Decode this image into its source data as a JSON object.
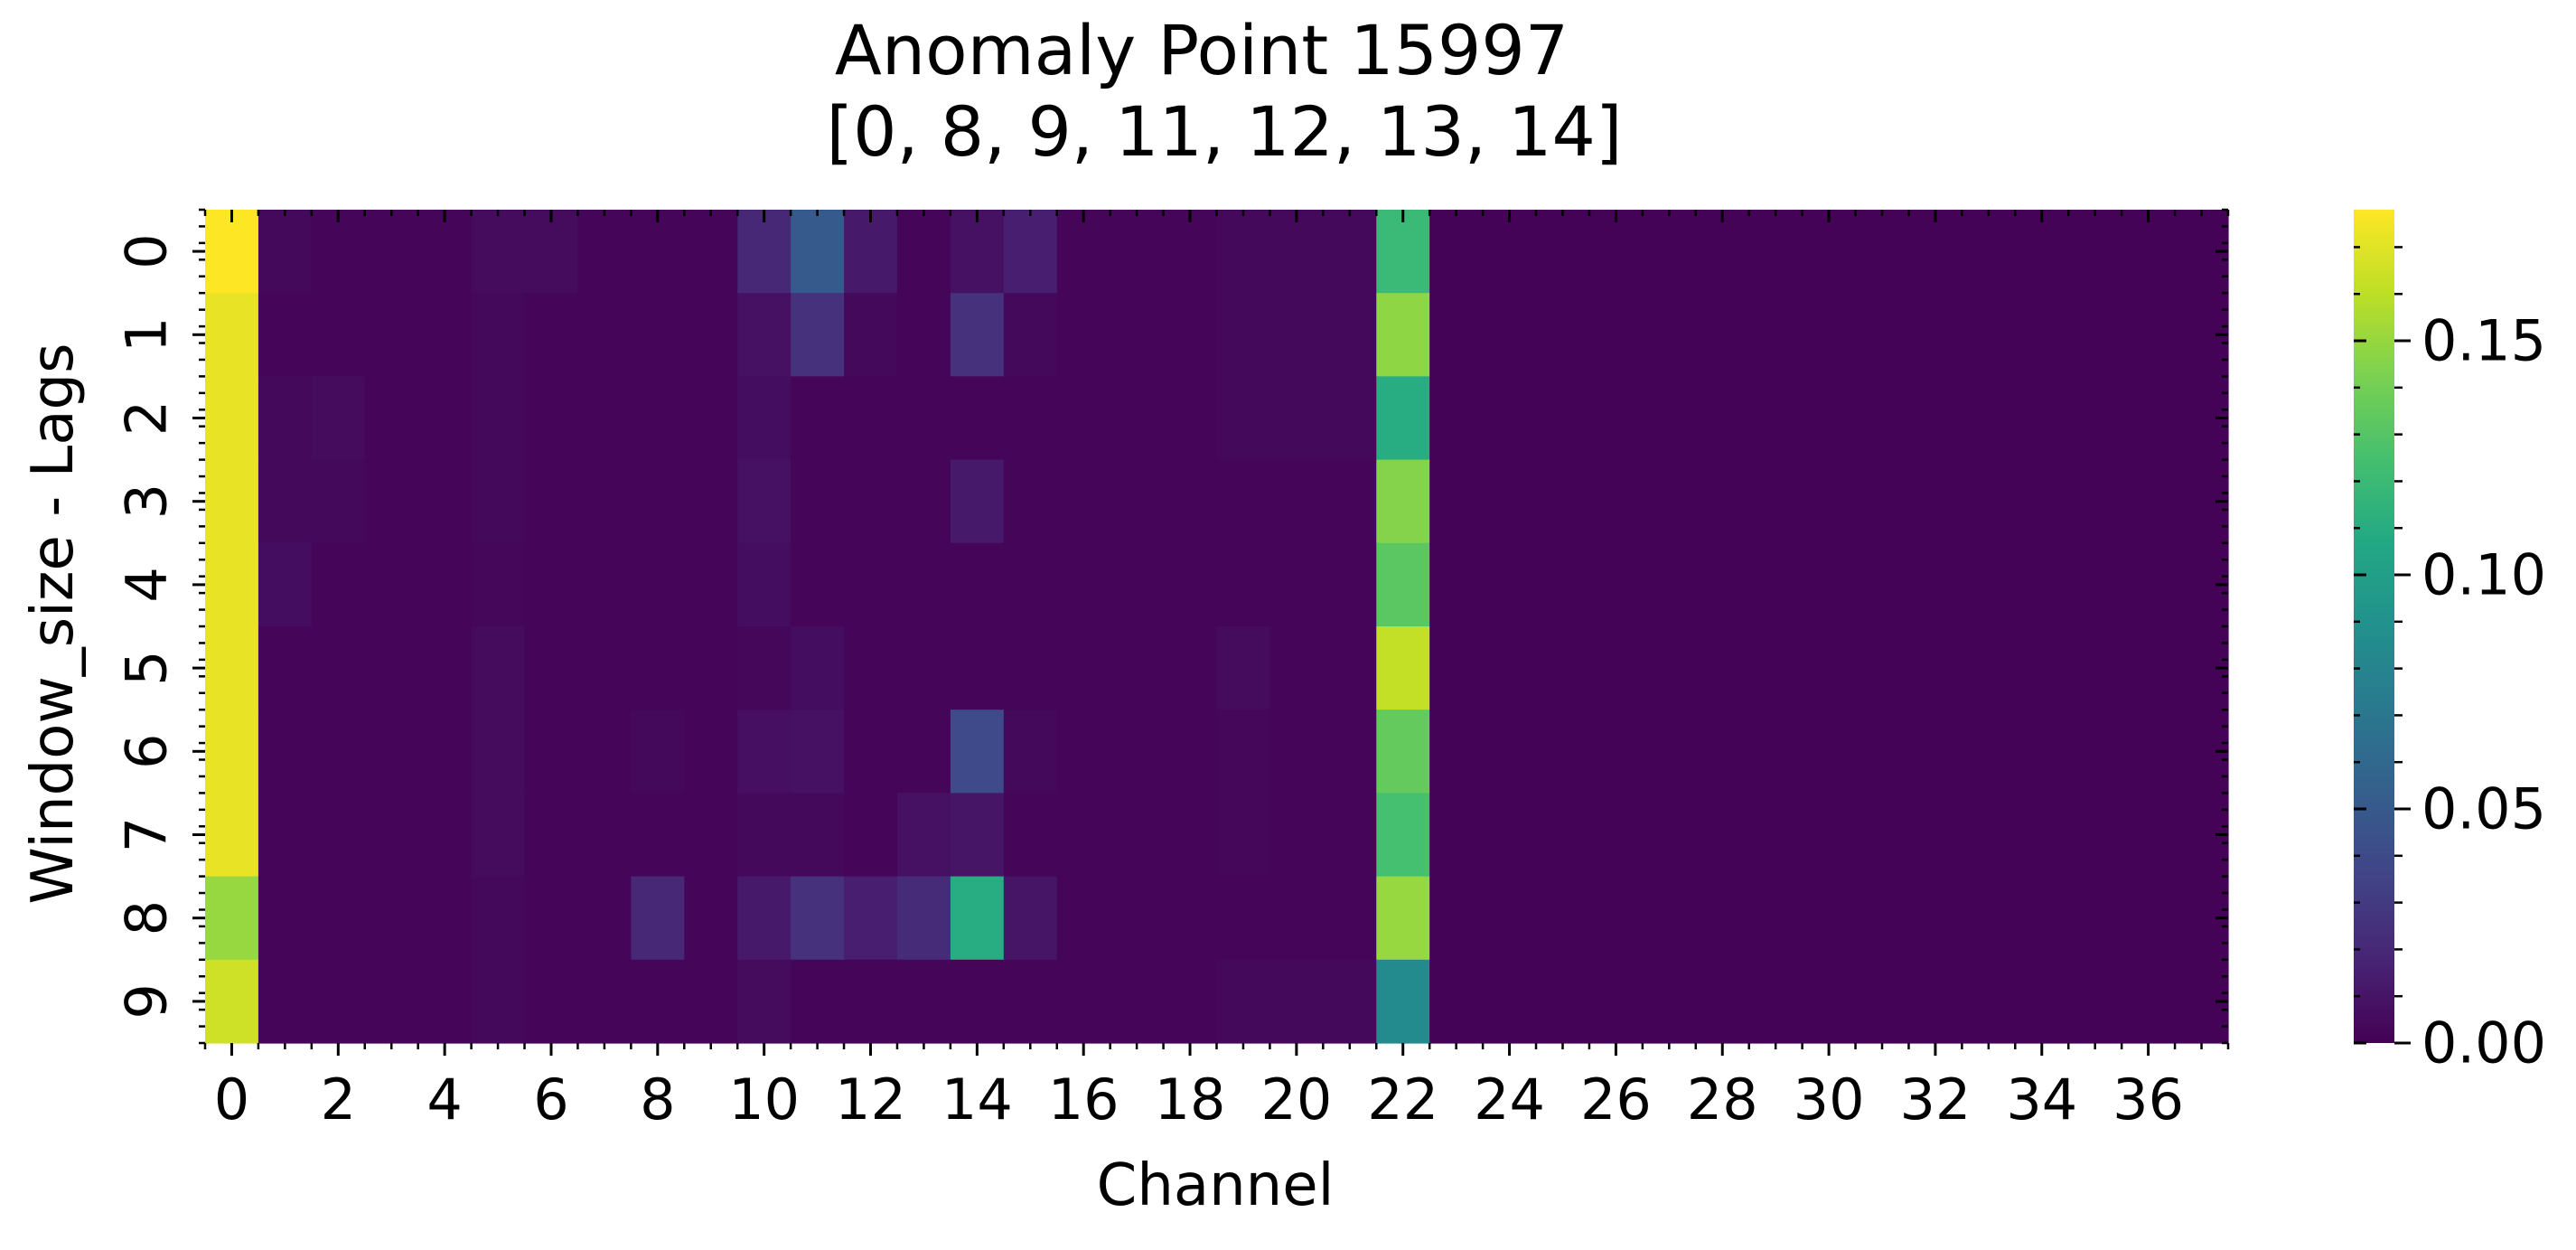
{
  "chart_data": {
    "type": "heatmap",
    "title": "Anomaly Point 15997",
    "subtitle": "[0, 8, 9, 11, 12, 13, 14]",
    "xlabel": "Channel",
    "ylabel": "Window_size - Lags",
    "x_tick_labels": [
      "0",
      "2",
      "4",
      "6",
      "8",
      "10",
      "12",
      "14",
      "16",
      "18",
      "20",
      "22",
      "24",
      "26",
      "28",
      "30",
      "32",
      "34",
      "36"
    ],
    "y_tick_labels": [
      "0",
      "1",
      "2",
      "3",
      "4",
      "5",
      "6",
      "7",
      "8",
      "9"
    ],
    "n_channels": 38,
    "n_lags": 10,
    "colormap": "viridis",
    "colorbar": {
      "ticks": [
        0.0,
        0.05,
        0.1,
        0.15
      ],
      "tick_labels": [
        "0.00",
        "0.05",
        "0.10",
        "0.15"
      ],
      "vmin": 0.0,
      "vmax": 0.178
    },
    "values": [
      [
        0.178,
        0.004,
        0.002,
        0.002,
        0.002,
        0.005,
        0.005,
        0.002,
        0.002,
        0.002,
        0.02,
        0.05,
        0.012,
        0.002,
        0.008,
        0.015,
        0.002,
        0.002,
        0.002,
        0.004,
        0.004,
        0.004,
        0.12,
        0.001,
        0.001,
        0.001,
        0.001,
        0.001,
        0.001,
        0.001,
        0.001,
        0.001,
        0.001,
        0.001,
        0.001,
        0.001,
        0.001,
        0.001
      ],
      [
        0.172,
        0.002,
        0.002,
        0.002,
        0.002,
        0.004,
        0.002,
        0.002,
        0.002,
        0.002,
        0.008,
        0.025,
        0.004,
        0.002,
        0.025,
        0.004,
        0.002,
        0.002,
        0.002,
        0.004,
        0.004,
        0.004,
        0.148,
        0.001,
        0.001,
        0.001,
        0.001,
        0.001,
        0.001,
        0.001,
        0.001,
        0.001,
        0.001,
        0.001,
        0.001,
        0.001,
        0.001,
        0.001
      ],
      [
        0.172,
        0.004,
        0.005,
        0.002,
        0.002,
        0.004,
        0.002,
        0.002,
        0.002,
        0.002,
        0.006,
        0.002,
        0.002,
        0.002,
        0.002,
        0.002,
        0.002,
        0.002,
        0.002,
        0.004,
        0.004,
        0.004,
        0.11,
        0.001,
        0.001,
        0.001,
        0.001,
        0.001,
        0.001,
        0.001,
        0.001,
        0.001,
        0.001,
        0.001,
        0.001,
        0.001,
        0.001,
        0.001
      ],
      [
        0.172,
        0.004,
        0.004,
        0.002,
        0.002,
        0.004,
        0.002,
        0.002,
        0.002,
        0.002,
        0.008,
        0.002,
        0.002,
        0.002,
        0.012,
        0.002,
        0.002,
        0.002,
        0.002,
        0.002,
        0.002,
        0.002,
        0.145,
        0.001,
        0.001,
        0.001,
        0.001,
        0.001,
        0.001,
        0.001,
        0.001,
        0.001,
        0.001,
        0.001,
        0.001,
        0.001,
        0.001,
        0.001
      ],
      [
        0.172,
        0.006,
        0.002,
        0.002,
        0.002,
        0.003,
        0.002,
        0.002,
        0.002,
        0.002,
        0.006,
        0.002,
        0.002,
        0.002,
        0.002,
        0.002,
        0.002,
        0.002,
        0.002,
        0.002,
        0.002,
        0.002,
        0.132,
        0.001,
        0.001,
        0.001,
        0.001,
        0.001,
        0.001,
        0.001,
        0.001,
        0.001,
        0.001,
        0.001,
        0.001,
        0.001,
        0.001,
        0.001
      ],
      [
        0.172,
        0.002,
        0.002,
        0.002,
        0.002,
        0.005,
        0.002,
        0.002,
        0.002,
        0.002,
        0.003,
        0.006,
        0.002,
        0.002,
        0.002,
        0.002,
        0.002,
        0.002,
        0.002,
        0.005,
        0.002,
        0.002,
        0.162,
        0.001,
        0.001,
        0.001,
        0.001,
        0.001,
        0.001,
        0.001,
        0.001,
        0.001,
        0.001,
        0.001,
        0.001,
        0.001,
        0.001,
        0.001
      ],
      [
        0.172,
        0.002,
        0.002,
        0.002,
        0.002,
        0.005,
        0.002,
        0.002,
        0.004,
        0.002,
        0.007,
        0.008,
        0.002,
        0.002,
        0.04,
        0.004,
        0.002,
        0.002,
        0.002,
        0.003,
        0.002,
        0.002,
        0.135,
        0.001,
        0.001,
        0.001,
        0.001,
        0.001,
        0.001,
        0.001,
        0.001,
        0.001,
        0.001,
        0.001,
        0.001,
        0.001,
        0.001,
        0.001
      ],
      [
        0.172,
        0.002,
        0.002,
        0.002,
        0.002,
        0.005,
        0.002,
        0.002,
        0.002,
        0.002,
        0.004,
        0.004,
        0.002,
        0.008,
        0.01,
        0.002,
        0.002,
        0.002,
        0.002,
        0.003,
        0.002,
        0.002,
        0.125,
        0.001,
        0.001,
        0.001,
        0.001,
        0.001,
        0.001,
        0.001,
        0.001,
        0.001,
        0.001,
        0.001,
        0.001,
        0.001,
        0.001,
        0.001
      ],
      [
        0.15,
        0.002,
        0.002,
        0.002,
        0.002,
        0.004,
        0.002,
        0.002,
        0.02,
        0.002,
        0.012,
        0.025,
        0.015,
        0.022,
        0.11,
        0.01,
        0.002,
        0.002,
        0.002,
        0.002,
        0.002,
        0.002,
        0.15,
        0.001,
        0.001,
        0.001,
        0.001,
        0.001,
        0.001,
        0.001,
        0.001,
        0.001,
        0.001,
        0.001,
        0.001,
        0.001,
        0.001,
        0.001
      ],
      [
        0.165,
        0.002,
        0.002,
        0.002,
        0.002,
        0.004,
        0.002,
        0.002,
        0.002,
        0.002,
        0.005,
        0.002,
        0.002,
        0.002,
        0.002,
        0.002,
        0.002,
        0.002,
        0.002,
        0.004,
        0.004,
        0.004,
        0.085,
        0.001,
        0.001,
        0.001,
        0.001,
        0.001,
        0.001,
        0.001,
        0.001,
        0.001,
        0.001,
        0.001,
        0.001,
        0.001,
        0.001,
        0.001
      ]
    ]
  }
}
